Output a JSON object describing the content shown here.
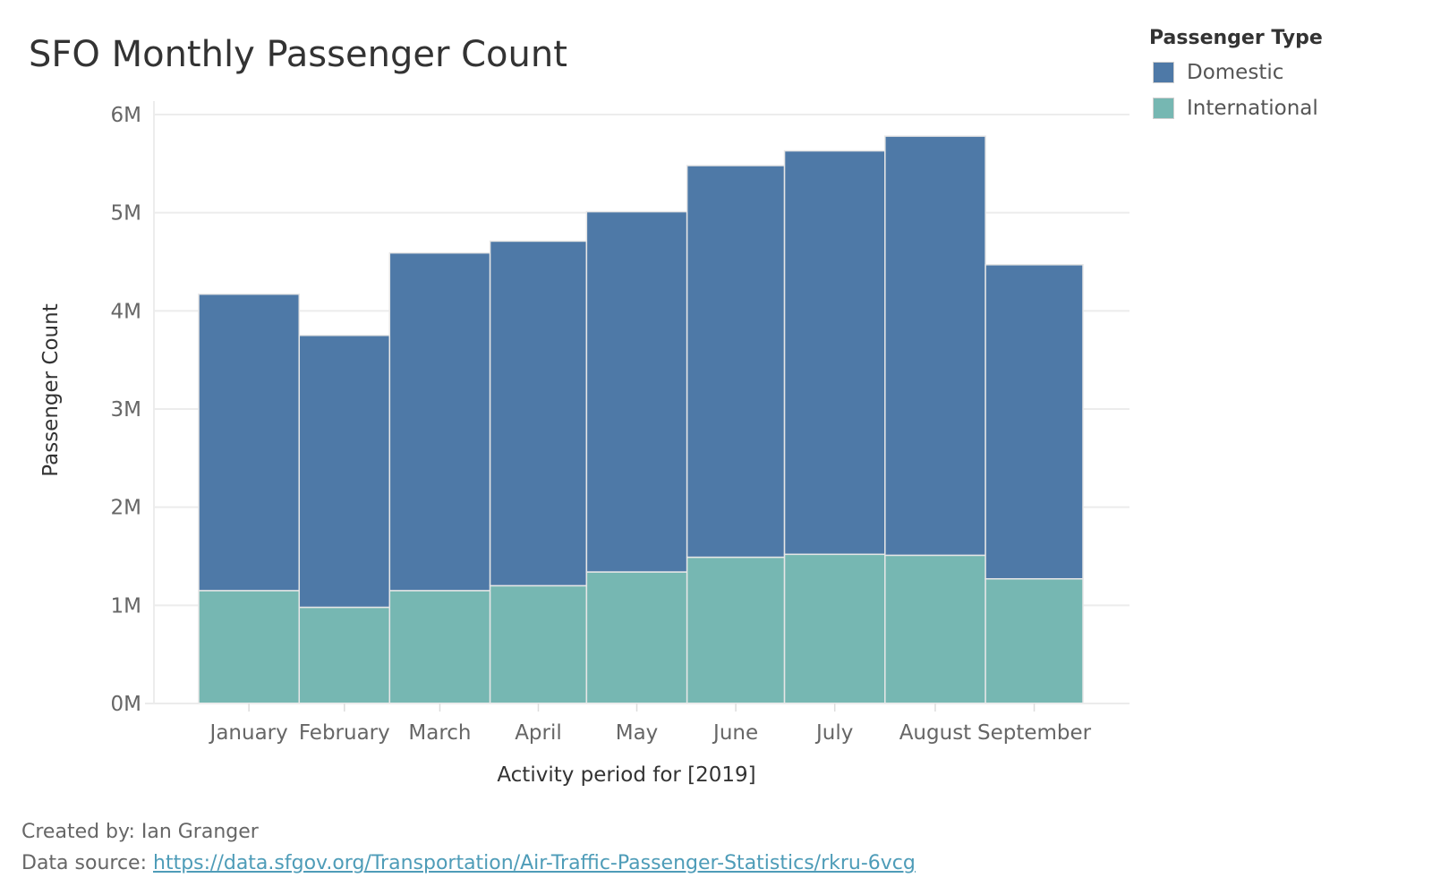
{
  "colors": {
    "domestic": "#4e79a7",
    "international": "#76b7b2",
    "gridline": "#ececec",
    "bar_border": "#e6e6e6",
    "link": "#4e9cb8"
  },
  "legend": {
    "title": "Passenger Type",
    "items": [
      {
        "label": "Domestic",
        "color": "#4e79a7"
      },
      {
        "label": "International",
        "color": "#76b7b2"
      }
    ]
  },
  "footer": {
    "created_by": "Created by: Ian Granger",
    "source_prefix": "Data source: ",
    "source_link": "https://data.sfgov.org/Transportation/Air-Traffic-Passenger-Statistics/rkru-6vcg"
  },
  "chart_data": {
    "type": "bar",
    "stacked": true,
    "title": "SFO Monthly Passenger Count",
    "xlabel": "Activity period for [2019]",
    "ylabel": "Passenger Count",
    "ylim": [
      0,
      6000000
    ],
    "yticks": [
      {
        "value": 0,
        "label": "0M"
      },
      {
        "value": 1000000,
        "label": "1M"
      },
      {
        "value": 2000000,
        "label": "2M"
      },
      {
        "value": 3000000,
        "label": "3M"
      },
      {
        "value": 4000000,
        "label": "4M"
      },
      {
        "value": 5000000,
        "label": "5M"
      },
      {
        "value": 6000000,
        "label": "6M"
      }
    ],
    "categories": [
      "January",
      "February",
      "March",
      "April",
      "May",
      "June",
      "July",
      "August",
      "September"
    ],
    "category_widths": [
      1.0,
      0.9,
      1.0,
      0.96,
      1.0,
      0.97,
      1.0,
      1.0,
      0.97
    ],
    "series": [
      {
        "name": "International",
        "values": [
          1150000,
          980000,
          1150000,
          1200000,
          1340000,
          1490000,
          1520000,
          1510000,
          1270000
        ]
      },
      {
        "name": "Domestic",
        "values": [
          3020000,
          2770000,
          3440000,
          3510000,
          3670000,
          3990000,
          4110000,
          4270000,
          3200000
        ]
      }
    ],
    "grid": true,
    "legend_position": "top-right"
  }
}
